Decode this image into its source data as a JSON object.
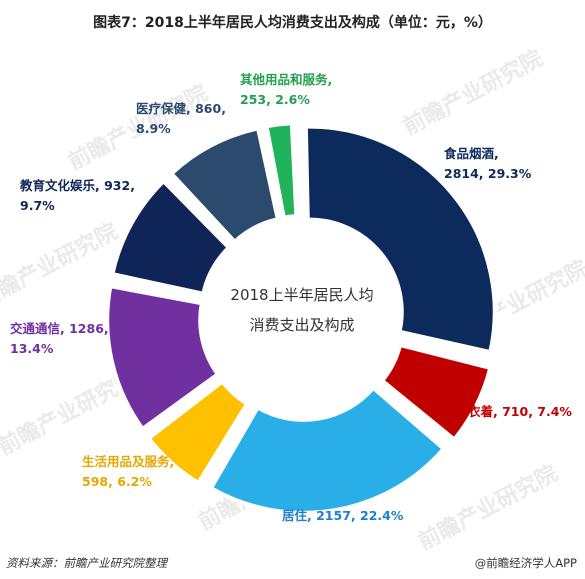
{
  "title": "图表7：2018上半年居民人均消费支出及构成（单位：元，%）",
  "footer": {
    "source": "资料来源：前瞻产业研究院整理",
    "brand": "@前瞻经济学人APP"
  },
  "watermark": "前瞻产业研究院",
  "chart_data": {
    "type": "donut",
    "center_label": [
      "2018上半年居民人均",
      "消费支出及构成"
    ],
    "slices": [
      {
        "name": "食品烟酒",
        "value": 2814,
        "percent": "29.3%",
        "color": "#0d2a5c",
        "label_lines": [
          "食品烟酒,",
          "2814, 29.3%"
        ],
        "label_color": "#0d2a5c"
      },
      {
        "name": "衣着",
        "value": 710,
        "percent": "7.4%",
        "color": "#c00000",
        "label_lines": [
          "衣着, 710, 7.4%"
        ],
        "label_color": "#c00000"
      },
      {
        "name": "居住",
        "value": 2157,
        "percent": "22.4%",
        "color": "#29aee8",
        "label_lines": [
          "居住, 2157, 22.4%"
        ],
        "label_color": "#1f7fcf"
      },
      {
        "name": "生活用品及服务",
        "value": 598,
        "percent": "6.2%",
        "color": "#ffc000",
        "label_lines": [
          "生活用品及服务,",
          "598, 6.2%"
        ],
        "label_color": "#e6a800"
      },
      {
        "name": "交通通信",
        "value": 1286,
        "percent": "13.4%",
        "color": "#7030a0",
        "label_lines": [
          "交通通信, 1286,",
          "13.4%"
        ],
        "label_color": "#7030a0"
      },
      {
        "name": "教育文化娱乐",
        "value": 932,
        "percent": "9.7%",
        "color": "#0f2557",
        "label_lines": [
          "教育文化娱乐, 932,",
          "9.7%"
        ],
        "label_color": "#0f2557"
      },
      {
        "name": "医疗保健",
        "value": 860,
        "percent": "8.9%",
        "color": "#2c4a6e",
        "label_lines": [
          "医疗保健, 860,",
          "8.9%"
        ],
        "label_color": "#2c4a6e"
      },
      {
        "name": "其他用品和服务",
        "value": 253,
        "percent": "2.6%",
        "color": "#21b35b",
        "label_lines": [
          "其他用品和服务,",
          "253, 2.6%"
        ],
        "label_color": "#21a050"
      }
    ]
  }
}
